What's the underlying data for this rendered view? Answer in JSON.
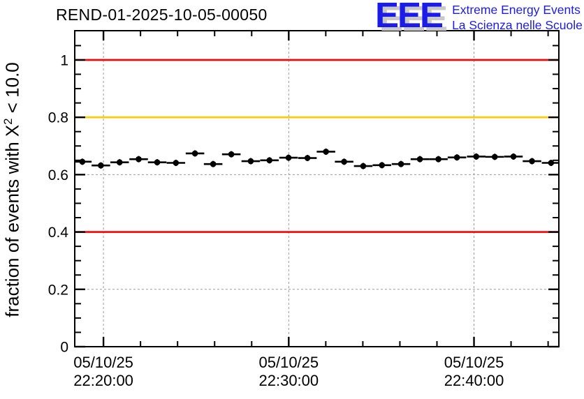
{
  "header": {
    "title": "REND-01-2025-10-05-00050"
  },
  "logo": {
    "acronym": "EEE",
    "line1": "Extreme Energy Events",
    "line2": "La Scienza nelle Scuole",
    "color": "#1c1ce8",
    "shadow_color": "#c9c9c9"
  },
  "axes": {
    "y_label_parts": {
      "pre": "fraction of events with X",
      "sup": "2",
      "post": " < 10.0"
    }
  },
  "chart_data": {
    "type": "scatter",
    "title": "REND-01-2025-10-05-00050",
    "ylabel": "fraction of events with X^2 < 10.0",
    "xlabel": "",
    "ylim": [
      0,
      1.102
    ],
    "xlim_minutes": [
      -1.55,
      24.58
    ],
    "x_axis": {
      "unit": "minutes after 22:20:00, date 05/10/25",
      "major_ticks": [
        {
          "t": 0,
          "date": "05/10/25",
          "time": "22:20:00"
        },
        {
          "t": 10,
          "date": "05/10/25",
          "time": "22:30:00"
        },
        {
          "t": 20,
          "date": "05/10/25",
          "time": "22:40:00"
        }
      ],
      "minor_tick_step": 2
    },
    "y_axis": {
      "major_ticks": [
        {
          "v": 0,
          "label": "0"
        },
        {
          "v": 0.2,
          "label": "0.2"
        },
        {
          "v": 0.4,
          "label": "0.4"
        },
        {
          "v": 0.6,
          "label": "0.6"
        },
        {
          "v": 0.8,
          "label": "0.8"
        },
        {
          "v": 1.0,
          "label": "1"
        }
      ],
      "minor_tick_step": 0.05
    },
    "grid": {
      "show": true,
      "style": "dashed",
      "color": "#9a9a9a",
      "at": "major-ticks"
    },
    "reference_lines": [
      {
        "y": 1.0,
        "color": "#ff0000",
        "name": "upper-limit"
      },
      {
        "y": 0.8,
        "color": "#ffcc00",
        "name": "warning-level"
      },
      {
        "y": 0.4,
        "color": "#ff0000",
        "name": "lower-limit"
      }
    ],
    "series": [
      {
        "name": "fraction-of-good-chi2-events",
        "marker": "filled-circle",
        "color": "#000000",
        "xerr_minutes": 0.5,
        "points": [
          {
            "t": -1.14,
            "y": 0.645
          },
          {
            "t": -0.14,
            "y": 0.632
          },
          {
            "t": 0.87,
            "y": 0.643
          },
          {
            "t": 1.9,
            "y": 0.654
          },
          {
            "t": 2.9,
            "y": 0.643
          },
          {
            "t": 3.91,
            "y": 0.641
          },
          {
            "t": 4.94,
            "y": 0.674
          },
          {
            "t": 5.92,
            "y": 0.637
          },
          {
            "t": 6.9,
            "y": 0.671
          },
          {
            "t": 7.95,
            "y": 0.647
          },
          {
            "t": 8.96,
            "y": 0.65
          },
          {
            "t": 9.99,
            "y": 0.659
          },
          {
            "t": 11.01,
            "y": 0.658
          },
          {
            "t": 12.01,
            "y": 0.68
          },
          {
            "t": 12.99,
            "y": 0.645
          },
          {
            "t": 14.02,
            "y": 0.63
          },
          {
            "t": 15.03,
            "y": 0.633
          },
          {
            "t": 16.06,
            "y": 0.637
          },
          {
            "t": 17.08,
            "y": 0.654
          },
          {
            "t": 18.08,
            "y": 0.654
          },
          {
            "t": 19.08,
            "y": 0.66
          },
          {
            "t": 20.12,
            "y": 0.663
          },
          {
            "t": 21.12,
            "y": 0.662
          },
          {
            "t": 22.13,
            "y": 0.663
          },
          {
            "t": 23.13,
            "y": 0.647
          },
          {
            "t": 24.16,
            "y": 0.641
          }
        ]
      }
    ]
  }
}
